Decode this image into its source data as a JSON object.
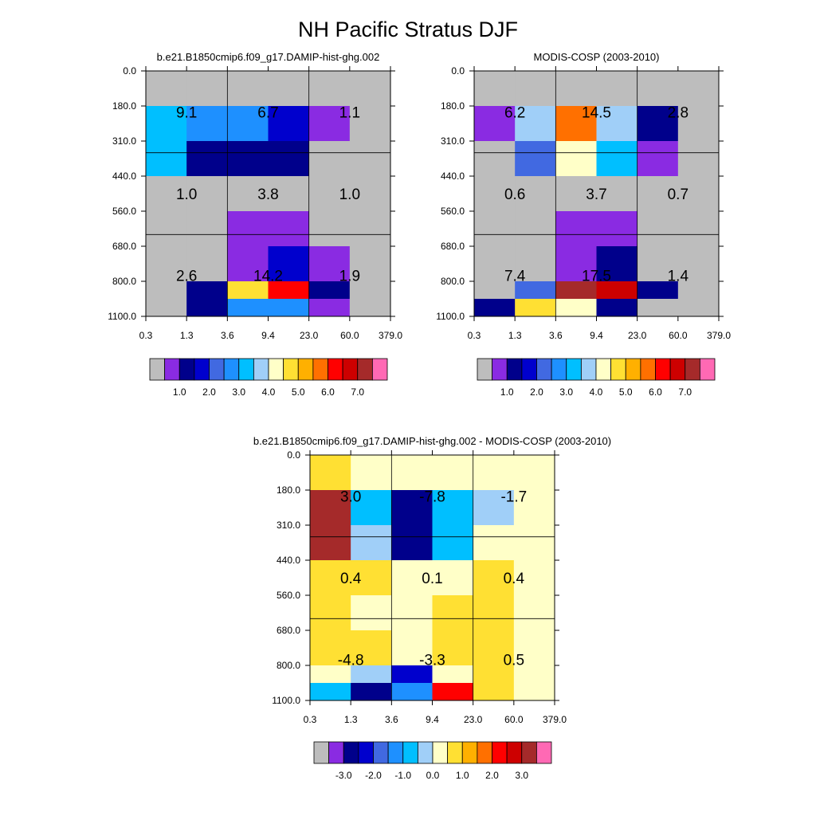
{
  "title": "NH Pacific Stratus DJF",
  "chart_data": [
    {
      "type": "heatmap",
      "id": "model",
      "title": "b.e21.B1850cmip6.f09_g17.DAMIP-hist-ghg.002",
      "x_ticks": [
        "0.3",
        "1.3",
        "3.6",
        "9.4",
        "23.0",
        "60.0",
        "379.0"
      ],
      "y_ticks": [
        "0.0",
        "180.0",
        "310.0",
        "440.0",
        "560.0",
        "680.0",
        "800.0",
        "1100.0"
      ],
      "color_index_grid": [
        [
          0,
          0,
          0,
          0,
          0,
          0
        ],
        [
          6,
          5,
          5,
          3,
          1,
          0
        ],
        [
          6,
          2,
          2,
          2,
          0,
          0
        ],
        [
          0,
          0,
          0,
          0,
          0,
          0
        ],
        [
          0,
          0,
          1,
          1,
          0,
          0
        ],
        [
          0,
          0,
          1,
          3,
          1,
          0
        ],
        [
          0,
          2,
          9,
          12,
          2,
          0
        ],
        [
          0,
          2,
          5,
          5,
          1,
          0
        ]
      ],
      "boxes": [
        {
          "label": "9.1",
          "row": 0,
          "col": 0
        },
        {
          "label": "6.7",
          "row": 0,
          "col": 1
        },
        {
          "label": "1.1",
          "row": 0,
          "col": 2
        },
        {
          "label": "1.0",
          "row": 1,
          "col": 0
        },
        {
          "label": "3.8",
          "row": 1,
          "col": 1
        },
        {
          "label": "1.0",
          "row": 1,
          "col": 2
        },
        {
          "label": "2.6",
          "row": 2,
          "col": 0
        },
        {
          "label": "14.2",
          "row": 2,
          "col": 1
        },
        {
          "label": "1.9",
          "row": 2,
          "col": 2
        }
      ],
      "colorbar_labels": [
        "1.0",
        "2.0",
        "3.0",
        "4.0",
        "5.0",
        "6.0",
        "7.0"
      ]
    },
    {
      "type": "heatmap",
      "id": "obs",
      "title": "MODIS-COSP (2003-2010)",
      "x_ticks": [
        "0.3",
        "1.3",
        "3.6",
        "9.4",
        "23.0",
        "60.0",
        "379.0"
      ],
      "y_ticks": [
        "0.0",
        "180.0",
        "310.0",
        "440.0",
        "560.0",
        "680.0",
        "800.0",
        "1100.0"
      ],
      "color_index_grid": [
        [
          0,
          0,
          0,
          0,
          0,
          0
        ],
        [
          1,
          7,
          11,
          7,
          2,
          0
        ],
        [
          0,
          4,
          8,
          6,
          1,
          0
        ],
        [
          0,
          0,
          0,
          0,
          0,
          0
        ],
        [
          0,
          0,
          1,
          1,
          0,
          0
        ],
        [
          0,
          0,
          1,
          2,
          0,
          0
        ],
        [
          0,
          4,
          14,
          13,
          2,
          0
        ],
        [
          2,
          9,
          8,
          2,
          0,
          0
        ]
      ],
      "boxes": [
        {
          "label": "6.2",
          "row": 0,
          "col": 0
        },
        {
          "label": "14.5",
          "row": 0,
          "col": 1
        },
        {
          "label": "2.8",
          "row": 0,
          "col": 2
        },
        {
          "label": "0.6",
          "row": 1,
          "col": 0
        },
        {
          "label": "3.7",
          "row": 1,
          "col": 1
        },
        {
          "label": "0.7",
          "row": 1,
          "col": 2
        },
        {
          "label": "7.4",
          "row": 2,
          "col": 0
        },
        {
          "label": "17.5",
          "row": 2,
          "col": 1
        },
        {
          "label": "1.4",
          "row": 2,
          "col": 2
        }
      ],
      "colorbar_labels": [
        "1.0",
        "2.0",
        "3.0",
        "4.0",
        "5.0",
        "6.0",
        "7.0"
      ]
    },
    {
      "type": "heatmap",
      "id": "diff",
      "title": "b.e21.B1850cmip6.f09_g17.DAMIP-hist-ghg.002 - MODIS-COSP (2003-2010)",
      "x_ticks": [
        "0.3",
        "1.3",
        "3.6",
        "9.4",
        "23.0",
        "60.0",
        "379.0"
      ],
      "y_ticks": [
        "0.0",
        "180.0",
        "310.0",
        "440.0",
        "560.0",
        "680.0",
        "800.0",
        "1100.0"
      ],
      "color_index_grid": [
        [
          9,
          8,
          8,
          8,
          8,
          8
        ],
        [
          14,
          6,
          2,
          6,
          7,
          8
        ],
        [
          14,
          7,
          2,
          6,
          8,
          8
        ],
        [
          9,
          9,
          8,
          8,
          9,
          8
        ],
        [
          9,
          8,
          8,
          9,
          9,
          8
        ],
        [
          9,
          9,
          8,
          9,
          9,
          8
        ],
        [
          8,
          7,
          3,
          8,
          9,
          8
        ],
        [
          6,
          2,
          5,
          12,
          9,
          8
        ]
      ],
      "boxes": [
        {
          "label": "3.0",
          "row": 0,
          "col": 0
        },
        {
          "label": "-7.8",
          "row": 0,
          "col": 1
        },
        {
          "label": "-1.7",
          "row": 0,
          "col": 2
        },
        {
          "label": "0.4",
          "row": 1,
          "col": 0
        },
        {
          "label": "0.1",
          "row": 1,
          "col": 1
        },
        {
          "label": "0.4",
          "row": 1,
          "col": 2
        },
        {
          "label": "-4.8",
          "row": 2,
          "col": 0
        },
        {
          "label": "-3.3",
          "row": 2,
          "col": 1
        },
        {
          "label": "0.5",
          "row": 2,
          "col": 2
        }
      ],
      "colorbar_labels": [
        "-3.0",
        "-2.0",
        "-1.0",
        "0.0",
        "1.0",
        "2.0",
        "3.0"
      ]
    }
  ],
  "palette": [
    "#bdbdbd",
    "#8a2be2",
    "#00008b",
    "#0000cd",
    "#4169e1",
    "#1e90ff",
    "#00bfff",
    "#a0cff8",
    "#ffffc8",
    "#ffe033",
    "#ffb000",
    "#ff7000",
    "#ff0000",
    "#cd0000",
    "#a52a2a",
    "#ff69b4"
  ]
}
